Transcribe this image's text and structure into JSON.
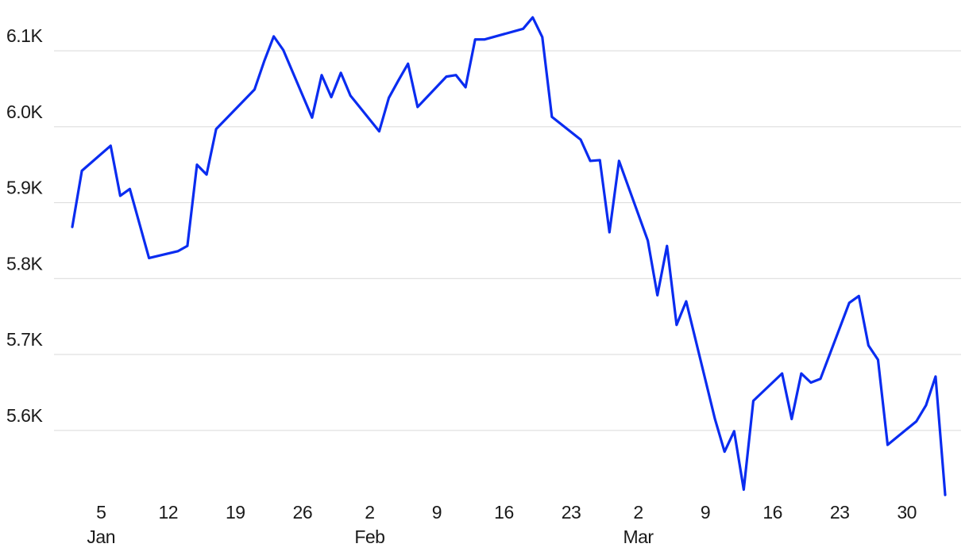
{
  "chart_data": {
    "type": "line",
    "x": [
      "01-02",
      "01-03",
      "01-06",
      "01-07",
      "01-08",
      "01-10",
      "01-13",
      "01-14",
      "01-15",
      "01-16",
      "01-17",
      "01-21",
      "01-22",
      "01-23",
      "01-24",
      "01-27",
      "01-28",
      "01-29",
      "01-30",
      "01-31",
      "02-03",
      "02-04",
      "02-05",
      "02-06",
      "02-07",
      "02-10",
      "02-11",
      "02-12",
      "02-13",
      "02-14",
      "02-18",
      "02-19",
      "02-20",
      "02-21",
      "02-24",
      "02-25",
      "02-26",
      "02-27",
      "02-28",
      "03-03",
      "03-04",
      "03-05",
      "03-06",
      "03-07",
      "03-10",
      "03-11",
      "03-12",
      "03-13",
      "03-14",
      "03-17",
      "03-18",
      "03-19",
      "03-20",
      "03-21",
      "03-24",
      "03-25",
      "03-26",
      "03-27",
      "03-28",
      "03-31",
      "04-01",
      "04-02",
      "04-03"
    ],
    "values": [
      5868,
      5942,
      5975,
      5909,
      5918,
      5827,
      5836,
      5843,
      5950,
      5937,
      5997,
      6049,
      6086,
      6119,
      6101,
      6012,
      6068,
      6039,
      6071,
      6041,
      5994,
      6038,
      6061,
      6083,
      6026,
      6066,
      6068,
      6052,
      6115,
      6115,
      6129,
      6144,
      6118,
      6013,
      5983,
      5955,
      5956,
      5861,
      5955,
      5850,
      5778,
      5843,
      5739,
      5770,
      5615,
      5572,
      5599,
      5522,
      5639,
      5675,
      5615,
      5675,
      5663,
      5668,
      5768,
      5777,
      5712,
      5693,
      5581,
      5612,
      5633,
      5671,
      5515
    ],
    "color": "#0a2cf0",
    "xlim": [
      "01-02",
      "04-03"
    ],
    "xticks": [
      {
        "value": "01-05",
        "label": "5"
      },
      {
        "value": "01-12",
        "label": "12"
      },
      {
        "value": "01-19",
        "label": "19"
      },
      {
        "value": "01-26",
        "label": "26"
      },
      {
        "value": "02-02",
        "label": "2"
      },
      {
        "value": "02-09",
        "label": "9"
      },
      {
        "value": "02-16",
        "label": "16"
      },
      {
        "value": "02-23",
        "label": "23"
      },
      {
        "value": "03-02",
        "label": "2"
      },
      {
        "value": "03-09",
        "label": "9"
      },
      {
        "value": "03-16",
        "label": "16"
      },
      {
        "value": "03-23",
        "label": "23"
      },
      {
        "value": "03-30",
        "label": "30"
      }
    ],
    "xtick_groups": [
      {
        "value": "01-05",
        "label": "Jan"
      },
      {
        "value": "02-02",
        "label": "Feb"
      },
      {
        "value": "03-02",
        "label": "Mar"
      }
    ],
    "ylim": [
      5510,
      6145
    ],
    "yticks": [
      {
        "value": 5600,
        "label": "5.6K"
      },
      {
        "value": 5700,
        "label": "5.7K"
      },
      {
        "value": 5800,
        "label": "5.8K"
      },
      {
        "value": 5900,
        "label": "5.9K"
      },
      {
        "value": 6000,
        "label": "6.0K"
      },
      {
        "value": 6100,
        "label": "6.1K"
      }
    ],
    "grid": true
  }
}
